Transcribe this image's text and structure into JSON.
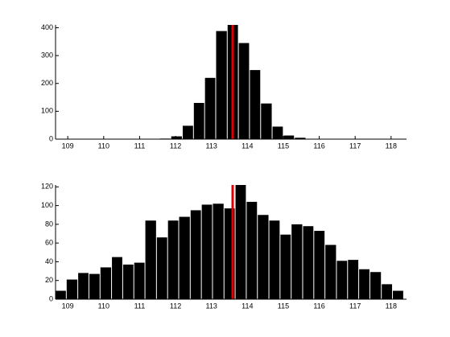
{
  "chart_data": [
    {
      "type": "histogram",
      "color": "#000000",
      "bins": [
        111.57,
        111.88,
        112.2,
        112.51,
        112.82,
        113.13,
        113.45,
        113.76,
        114.07,
        114.38,
        114.7,
        115.01,
        115.32,
        115.64,
        115.95
      ],
      "values": [
        2,
        10,
        48,
        130,
        220,
        388,
        410,
        345,
        248,
        128,
        45,
        13,
        5,
        1
      ],
      "vline": 113.59,
      "vline_color": "#e00000",
      "xlim": [
        108.66,
        118.43
      ],
      "ylim": [
        0,
        410
      ],
      "xticks": [
        109,
        110,
        111,
        112,
        113,
        114,
        115,
        116,
        117,
        118
      ],
      "yticks": [
        0,
        100,
        200,
        300,
        400
      ]
    },
    {
      "type": "histogram",
      "color": "#000000",
      "bins": [
        108.66,
        108.97,
        109.29,
        109.6,
        109.91,
        110.23,
        110.54,
        110.85,
        111.16,
        111.48,
        111.79,
        112.1,
        112.42,
        112.73,
        113.04,
        113.36,
        113.67,
        113.98,
        114.29,
        114.61,
        114.92,
        115.23,
        115.55,
        115.86,
        116.17,
        116.49,
        116.8,
        117.11,
        117.42,
        117.74,
        118.05,
        118.36
      ],
      "values": [
        9,
        21,
        28,
        27,
        34,
        45,
        37,
        39,
        84,
        66,
        84,
        88,
        95,
        101,
        102,
        97,
        122,
        104,
        90,
        84,
        69,
        80,
        78,
        73,
        58,
        41,
        42,
        32,
        29,
        16,
        9
      ],
      "vline": 113.59,
      "vline_color": "#e00000",
      "xlim": [
        108.66,
        118.43
      ],
      "ylim": [
        0,
        122
      ],
      "xticks": [
        109,
        110,
        111,
        112,
        113,
        114,
        115,
        116,
        117,
        118
      ],
      "yticks": [
        0,
        20,
        40,
        60,
        80,
        100,
        120
      ]
    }
  ]
}
